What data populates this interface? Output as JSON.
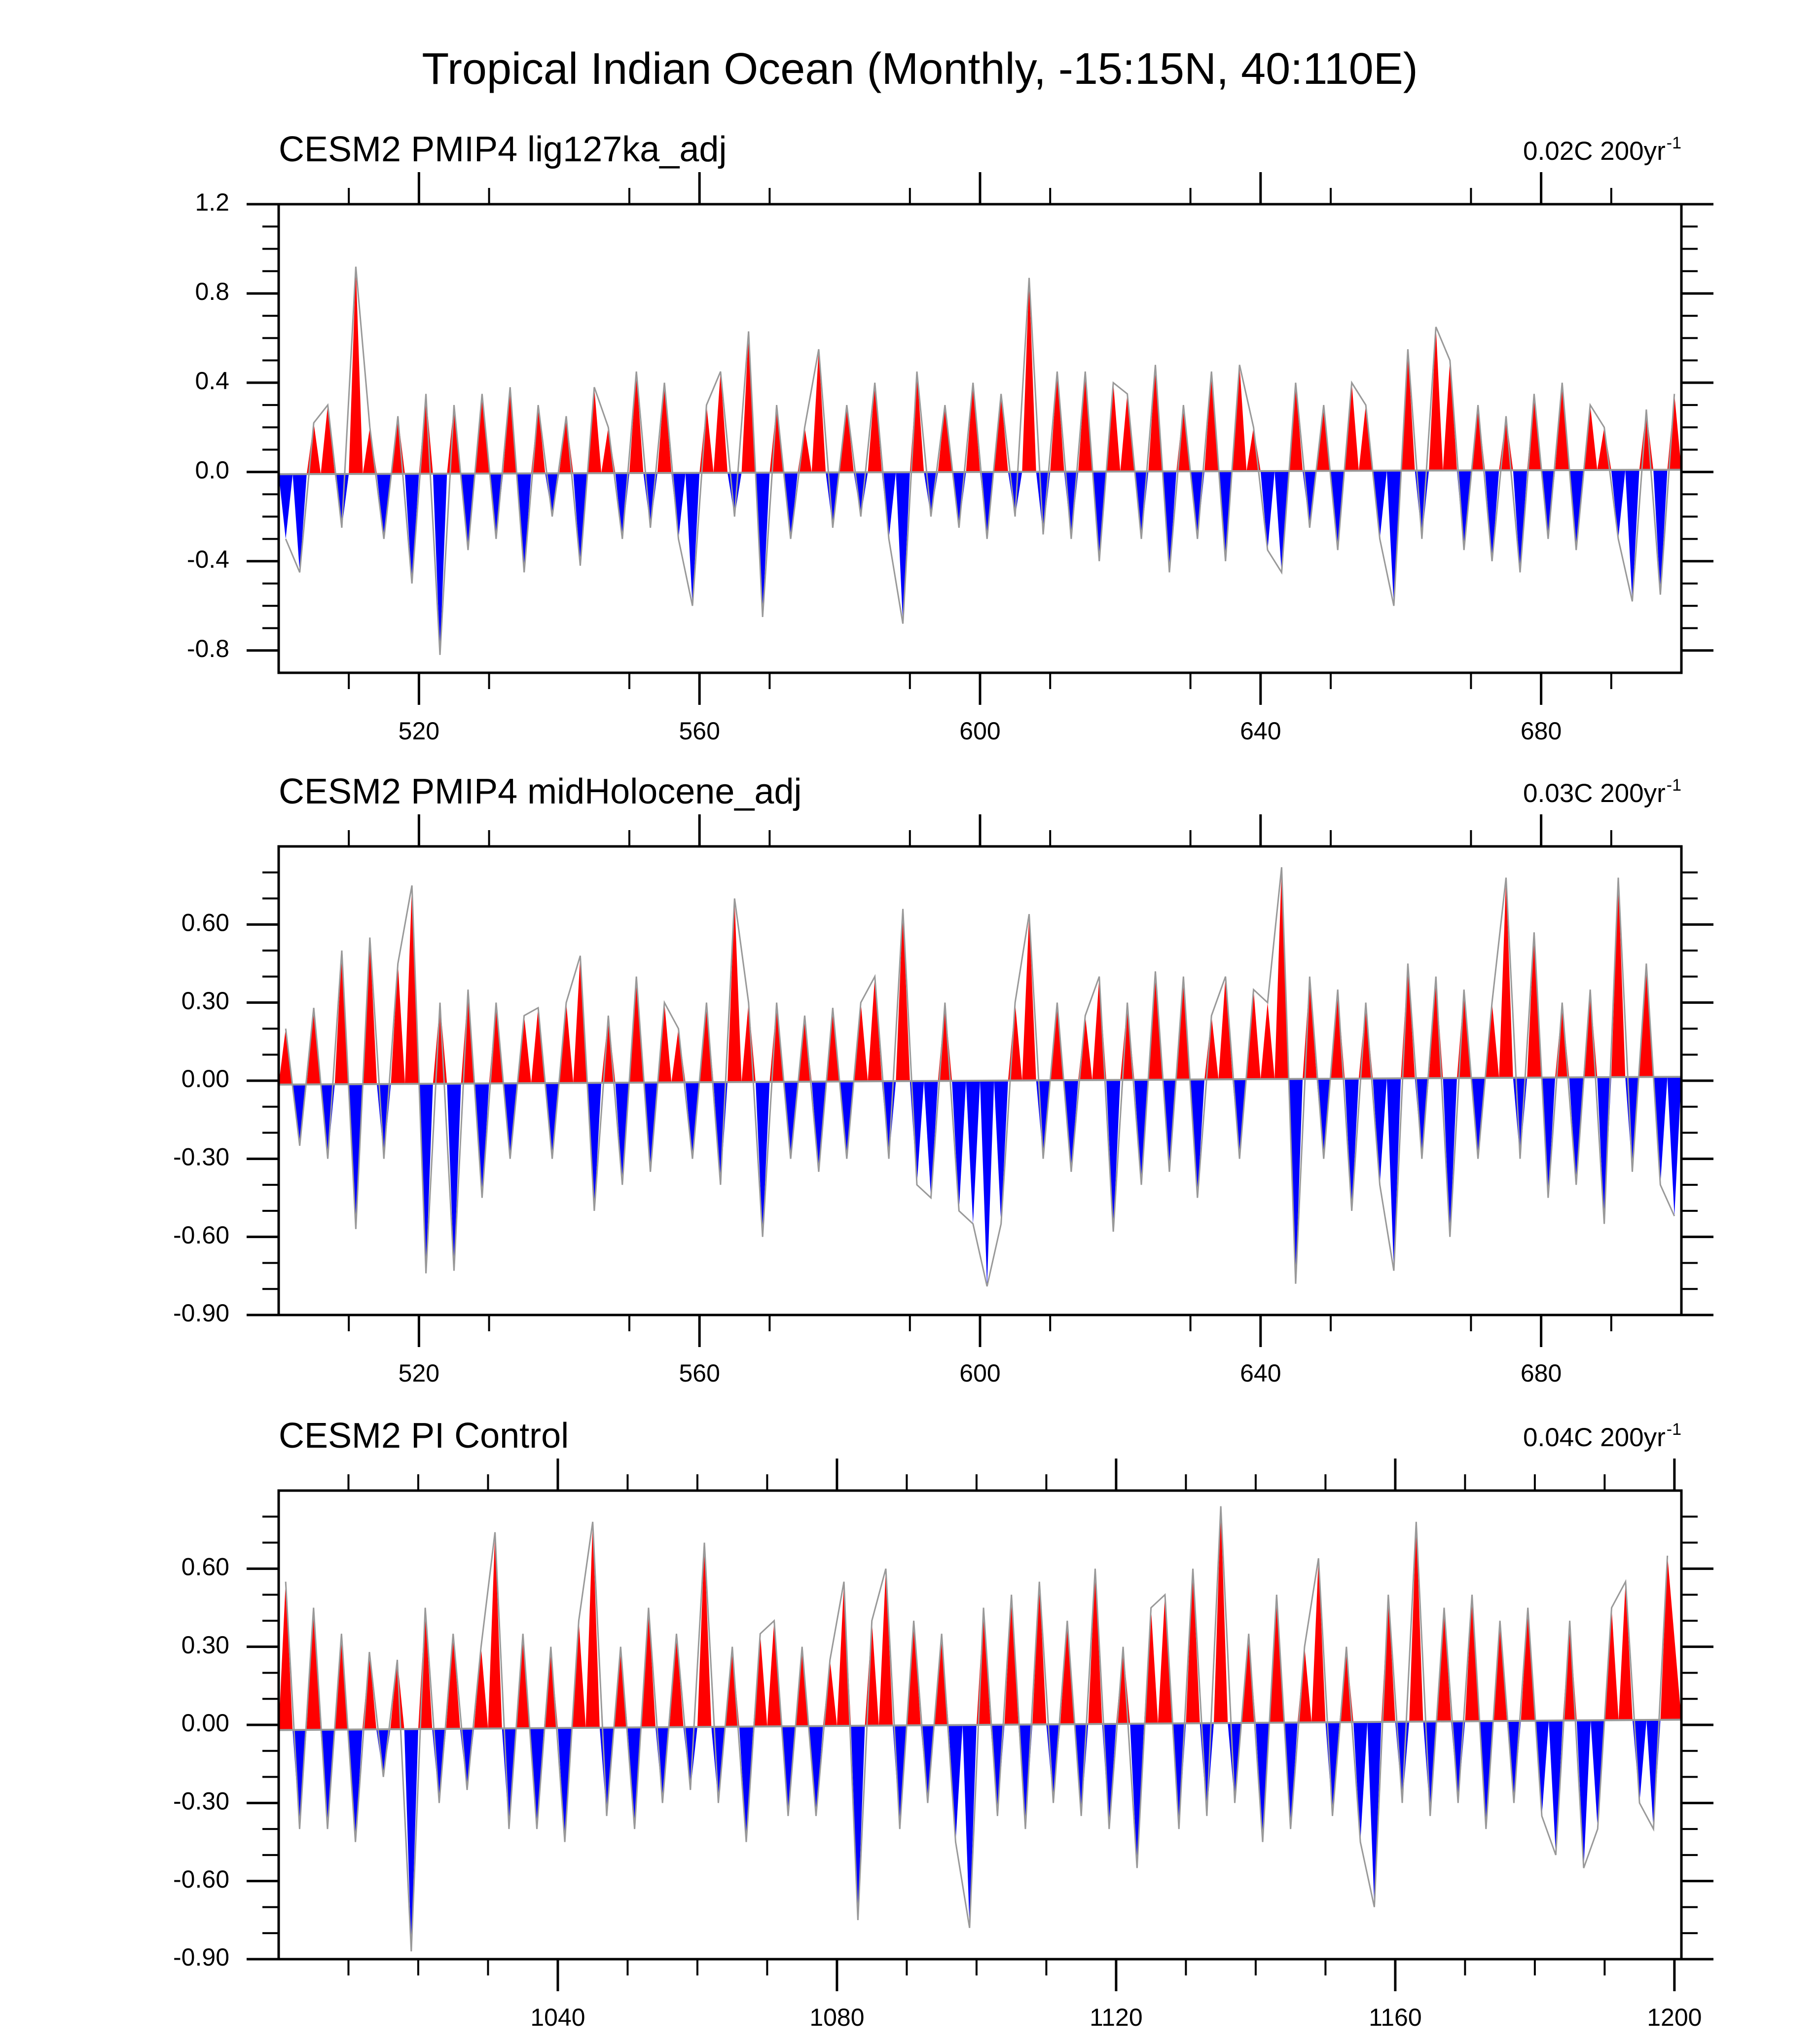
{
  "title": "Tropical Indian Ocean (Monthly, -15:15N, 40:110E)",
  "chart_data": [
    {
      "type": "area",
      "subtitle": "CESM2 PMIP4 lig127ka_adj",
      "annotation": {
        "text": "0.02C 200yr",
        "exponent": "-1"
      },
      "above_color": "#ff0000",
      "below_color": "#0000ff",
      "line_color": "#999999",
      "xlim": [
        500,
        700
      ],
      "ylim": [
        -0.9,
        1.2
      ],
      "xticks": [
        520,
        560,
        600,
        640,
        680
      ],
      "minor_xticks": [
        510,
        530,
        550,
        570,
        590,
        610,
        630,
        650,
        670,
        690
      ],
      "yticks": [
        1.2,
        0.8,
        0.4,
        {
          "value": 0,
          "label": "0.0"
        },
        -0.4,
        -0.8
      ],
      "minor_yticks": [
        -0.7,
        -0.6,
        -0.5,
        -0.3,
        -0.2,
        -0.1,
        0.1,
        0.2,
        0.3,
        0.5,
        0.6,
        0.7,
        0.9,
        1.0,
        1.1
      ],
      "trend": {
        "x": [
          500,
          700
        ],
        "values": [
          -0.01,
          0.01
        ]
      },
      "x": [
        501,
        503,
        505,
        507,
        509,
        511,
        513,
        515,
        517,
        519,
        521,
        523,
        525,
        527,
        529,
        531,
        533,
        535,
        537,
        539,
        541,
        543,
        545,
        547,
        549,
        551,
        553,
        555,
        557,
        559,
        561,
        563,
        565,
        567,
        569,
        571,
        573,
        575,
        577,
        579,
        581,
        583,
        585,
        587,
        589,
        591,
        593,
        595,
        597,
        599,
        601,
        603,
        605,
        607,
        609,
        611,
        613,
        615,
        617,
        619,
        621,
        623,
        625,
        627,
        629,
        631,
        633,
        635,
        637,
        639,
        641,
        643,
        645,
        647,
        649,
        651,
        653,
        655,
        657,
        659,
        661,
        663,
        665,
        667,
        669,
        671,
        673,
        675,
        677,
        679,
        681,
        683,
        685,
        687,
        689,
        691,
        693,
        695,
        697,
        699
      ],
      "values": [
        -0.3,
        -0.45,
        0.22,
        0.3,
        -0.25,
        0.92,
        0.2,
        -0.3,
        0.25,
        -0.5,
        0.35,
        -0.82,
        0.3,
        -0.35,
        0.35,
        -0.3,
        0.38,
        -0.45,
        0.3,
        -0.2,
        0.25,
        -0.42,
        0.38,
        0.2,
        -0.3,
        0.45,
        -0.25,
        0.4,
        -0.3,
        -0.6,
        0.3,
        0.45,
        -0.2,
        0.63,
        -0.65,
        0.3,
        -0.3,
        0.2,
        0.55,
        -0.25,
        0.3,
        -0.2,
        0.4,
        -0.3,
        -0.68,
        0.45,
        -0.2,
        0.3,
        -0.25,
        0.4,
        -0.3,
        0.35,
        -0.2,
        0.87,
        -0.28,
        0.45,
        -0.3,
        0.45,
        -0.4,
        0.4,
        0.35,
        -0.3,
        0.48,
        -0.45,
        0.3,
        -0.3,
        0.45,
        -0.4,
        0.48,
        0.2,
        -0.35,
        -0.45,
        0.4,
        -0.25,
        0.3,
        -0.35,
        0.4,
        0.3,
        -0.3,
        -0.6,
        0.55,
        -0.3,
        0.65,
        0.5,
        -0.35,
        0.3,
        -0.4,
        0.25,
        -0.45,
        0.35,
        -0.3,
        0.4,
        -0.35,
        0.3,
        0.2,
        -0.3,
        -0.58,
        0.28,
        -0.55,
        0.35
      ]
    },
    {
      "type": "area",
      "subtitle": "CESM2 PMIP4 midHolocene_adj",
      "annotation": {
        "text": "0.03C 200yr",
        "exponent": "-1"
      },
      "above_color": "#ff0000",
      "below_color": "#0000ff",
      "line_color": "#999999",
      "xlim": [
        500,
        700
      ],
      "ylim": [
        -0.9,
        0.9
      ],
      "xticks": [
        520,
        560,
        600,
        640,
        680
      ],
      "minor_xticks": [
        510,
        530,
        550,
        570,
        590,
        610,
        630,
        650,
        670,
        690
      ],
      "yticks": [
        {
          "value": 0.6,
          "label": "0.60"
        },
        {
          "value": 0.3,
          "label": "0.30"
        },
        {
          "value": 0,
          "label": "0.00"
        },
        {
          "value": -0.3,
          "label": "-0.30"
        },
        {
          "value": -0.6,
          "label": "-0.60"
        },
        {
          "value": -0.9,
          "label": "-0.90"
        }
      ],
      "minor_yticks": [
        -0.8,
        -0.7,
        -0.5,
        -0.4,
        -0.2,
        -0.1,
        0.1,
        0.2,
        0.4,
        0.5,
        0.7,
        0.8
      ],
      "trend": {
        "x": [
          500,
          700
        ],
        "values": [
          -0.015,
          0.015
        ]
      },
      "x": [
        501,
        503,
        505,
        507,
        509,
        511,
        513,
        515,
        517,
        519,
        521,
        523,
        525,
        527,
        529,
        531,
        533,
        535,
        537,
        539,
        541,
        543,
        545,
        547,
        549,
        551,
        553,
        555,
        557,
        559,
        561,
        563,
        565,
        567,
        569,
        571,
        573,
        575,
        577,
        579,
        581,
        583,
        585,
        587,
        589,
        591,
        593,
        595,
        597,
        599,
        601,
        603,
        605,
        607,
        609,
        611,
        613,
        615,
        617,
        619,
        621,
        623,
        625,
        627,
        629,
        631,
        633,
        635,
        637,
        639,
        641,
        643,
        645,
        647,
        649,
        651,
        653,
        655,
        657,
        659,
        661,
        663,
        665,
        667,
        669,
        671,
        673,
        675,
        677,
        679,
        681,
        683,
        685,
        687,
        689,
        691,
        693,
        695,
        697,
        699
      ],
      "values": [
        0.2,
        -0.25,
        0.28,
        -0.3,
        0.5,
        -0.57,
        0.55,
        -0.3,
        0.45,
        0.75,
        -0.74,
        0.3,
        -0.73,
        0.35,
        -0.45,
        0.3,
        -0.3,
        0.25,
        0.28,
        -0.3,
        0.3,
        0.48,
        -0.5,
        0.25,
        -0.4,
        0.4,
        -0.35,
        0.3,
        0.2,
        -0.3,
        0.3,
        -0.4,
        0.7,
        0.3,
        -0.6,
        0.3,
        -0.3,
        0.25,
        -0.35,
        0.28,
        -0.3,
        0.3,
        0.4,
        -0.3,
        0.66,
        -0.4,
        -0.45,
        0.3,
        -0.5,
        -0.55,
        -0.79,
        -0.55,
        0.3,
        0.64,
        -0.3,
        0.3,
        -0.35,
        0.25,
        0.4,
        -0.58,
        0.3,
        -0.4,
        0.42,
        -0.35,
        0.4,
        -0.45,
        0.25,
        0.4,
        -0.3,
        0.35,
        0.3,
        0.82,
        -0.78,
        0.4,
        -0.3,
        0.35,
        -0.5,
        0.3,
        -0.4,
        -0.73,
        0.45,
        -0.3,
        0.4,
        -0.6,
        0.35,
        -0.3,
        0.3,
        0.78,
        -0.3,
        0.57,
        -0.45,
        0.3,
        -0.4,
        0.35,
        -0.55,
        0.78,
        -0.35,
        0.45,
        -0.4,
        -0.52
      ]
    },
    {
      "type": "area",
      "subtitle": "CESM2 PI Control",
      "annotation": {
        "text": "0.04C 200yr",
        "exponent": "-1"
      },
      "above_color": "#ff0000",
      "below_color": "#0000ff",
      "line_color": "#999999",
      "xlim": [
        1000,
        1201
      ],
      "ylim": [
        -0.9,
        0.9
      ],
      "xticks": [
        1040,
        1080,
        1120,
        1160,
        1200
      ],
      "minor_xticks": [
        1010,
        1020,
        1030,
        1050,
        1060,
        1070,
        1090,
        1100,
        1110,
        1130,
        1140,
        1150,
        1170,
        1180,
        1190
      ],
      "yticks": [
        {
          "value": 0.6,
          "label": "0.60"
        },
        {
          "value": 0.3,
          "label": "0.30"
        },
        {
          "value": 0,
          "label": "0.00"
        },
        {
          "value": -0.3,
          "label": "-0.30"
        },
        {
          "value": -0.6,
          "label": "-0.60"
        },
        {
          "value": -0.9,
          "label": "-0.90"
        }
      ],
      "minor_yticks": [
        -0.8,
        -0.7,
        -0.5,
        -0.4,
        -0.2,
        -0.1,
        0.1,
        0.2,
        0.4,
        0.5,
        0.7,
        0.8
      ],
      "trend": {
        "x": [
          1000,
          1201
        ],
        "values": [
          -0.02,
          0.02
        ]
      },
      "x": [
        1001,
        1003,
        1005,
        1007,
        1009,
        1011,
        1013,
        1015,
        1017,
        1019,
        1021,
        1023,
        1025,
        1027,
        1029,
        1031,
        1033,
        1035,
        1037,
        1039,
        1041,
        1043,
        1045,
        1047,
        1049,
        1051,
        1053,
        1055,
        1057,
        1059,
        1061,
        1063,
        1065,
        1067,
        1069,
        1071,
        1073,
        1075,
        1077,
        1079,
        1081,
        1083,
        1085,
        1087,
        1089,
        1091,
        1093,
        1095,
        1097,
        1099,
        1101,
        1103,
        1105,
        1107,
        1109,
        1111,
        1113,
        1115,
        1117,
        1119,
        1121,
        1123,
        1125,
        1127,
        1129,
        1131,
        1133,
        1135,
        1137,
        1139,
        1141,
        1143,
        1145,
        1147,
        1149,
        1151,
        1153,
        1155,
        1157,
        1159,
        1161,
        1163,
        1165,
        1167,
        1169,
        1171,
        1173,
        1175,
        1177,
        1179,
        1181,
        1183,
        1185,
        1187,
        1189,
        1191,
        1193,
        1195,
        1197,
        1199
      ],
      "values": [
        0.55,
        -0.4,
        0.45,
        -0.4,
        0.35,
        -0.45,
        0.28,
        -0.2,
        0.25,
        -0.87,
        0.45,
        -0.3,
        0.35,
        -0.25,
        0.3,
        0.74,
        -0.4,
        0.35,
        -0.4,
        0.3,
        -0.45,
        0.4,
        0.78,
        -0.35,
        0.3,
        -0.4,
        0.45,
        -0.3,
        0.35,
        -0.25,
        0.7,
        -0.3,
        0.3,
        -0.45,
        0.35,
        0.4,
        -0.35,
        0.3,
        -0.35,
        0.25,
        0.55,
        -0.75,
        0.4,
        0.6,
        -0.4,
        0.4,
        -0.3,
        0.35,
        -0.45,
        -0.78,
        0.45,
        -0.35,
        0.5,
        -0.4,
        0.55,
        -0.3,
        0.4,
        -0.35,
        0.6,
        -0.4,
        0.3,
        -0.55,
        0.45,
        0.5,
        -0.4,
        0.6,
        -0.35,
        0.84,
        -0.3,
        0.35,
        -0.45,
        0.5,
        -0.4,
        0.3,
        0.64,
        -0.35,
        0.3,
        -0.45,
        -0.7,
        0.5,
        -0.3,
        0.78,
        -0.35,
        0.45,
        -0.3,
        0.5,
        -0.4,
        0.4,
        -0.3,
        0.45,
        -0.35,
        -0.5,
        0.4,
        -0.55,
        -0.4,
        0.45,
        0.55,
        -0.3,
        -0.4,
        0.65
      ]
    }
  ]
}
